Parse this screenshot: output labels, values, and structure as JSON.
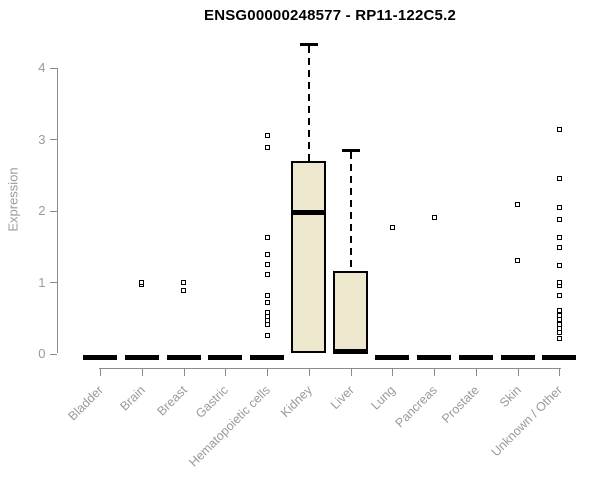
{
  "title": "ENSG00000248577 - RP11-122C5.2",
  "chart_data": {
    "type": "boxplot",
    "title": "ENSG00000248577 - RP11-122C5.2",
    "xlabel": "",
    "ylabel": "Expression",
    "ylim": [
      0,
      4
    ],
    "yticks": [
      0,
      1,
      2,
      3,
      4
    ],
    "grid": false,
    "legend": false,
    "categories": [
      "Bladder",
      "Brain",
      "Breast",
      "Gastric",
      "Hematopoietic cells",
      "Kidney",
      "Liver",
      "Lung",
      "Pancreas",
      "Prostate",
      "Skin",
      "Unknown / Other"
    ],
    "boxes": [
      {
        "category": "Bladder",
        "q1": 0,
        "median": 0,
        "q3": 0,
        "whisker_low": 0,
        "whisker_high": 0,
        "outliers": []
      },
      {
        "category": "Brain",
        "q1": 0,
        "median": 0,
        "q3": 0,
        "whisker_low": 0,
        "whisker_high": 0,
        "outliers": [
          0.96,
          1.0
        ]
      },
      {
        "category": "Breast",
        "q1": 0,
        "median": 0,
        "q3": 0,
        "whisker_low": 0,
        "whisker_high": 0,
        "outliers": [
          0.88,
          0.99
        ]
      },
      {
        "category": "Gastric",
        "q1": 0,
        "median": 0,
        "q3": 0,
        "whisker_low": 0,
        "whisker_high": 0,
        "outliers": []
      },
      {
        "category": "Hematopoietic cells",
        "q1": 0,
        "median": 0,
        "q3": 0,
        "whisker_low": 0,
        "whisker_high": 0,
        "outliers": [
          0.25,
          0.4,
          0.46,
          0.52,
          0.58,
          0.72,
          0.81,
          1.11,
          1.24,
          1.39,
          1.63,
          2.88,
          3.05
        ]
      },
      {
        "category": "Kidney",
        "q1": 0,
        "median": 1.97,
        "q3": 2.7,
        "whisker_low": 0,
        "whisker_high": 4.35,
        "outliers": []
      },
      {
        "category": "Liver",
        "q1": 0,
        "median": 0.03,
        "q3": 1.16,
        "whisker_low": 0,
        "whisker_high": 2.87,
        "outliers": []
      },
      {
        "category": "Lung",
        "q1": 0,
        "median": 0,
        "q3": 0,
        "whisker_low": 0,
        "whisker_high": 0,
        "outliers": [
          1.76
        ]
      },
      {
        "category": "Pancreas",
        "q1": 0,
        "median": 0,
        "q3": 0,
        "whisker_low": 0,
        "whisker_high": 0,
        "outliers": [
          1.91
        ]
      },
      {
        "category": "Prostate",
        "q1": 0,
        "median": 0,
        "q3": 0,
        "whisker_low": 0,
        "whisker_high": 0,
        "outliers": []
      },
      {
        "category": "Skin",
        "q1": 0,
        "median": 0,
        "q3": 0,
        "whisker_low": 0,
        "whisker_high": 0,
        "outliers": [
          1.3,
          2.08
        ]
      },
      {
        "category": "Unknown / Other",
        "q1": 0,
        "median": 0,
        "q3": 0,
        "whisker_low": 0,
        "whisker_high": 0,
        "outliers": [
          0.21,
          0.3,
          0.35,
          0.41,
          0.47,
          0.53,
          0.6,
          0.81,
          0.95,
          1.0,
          1.23,
          1.48,
          1.62,
          1.88,
          2.04,
          2.45,
          3.14
        ]
      }
    ]
  },
  "colors": {
    "box_fill": "#ede7cd",
    "box_border": "#000000",
    "axis": "#8c8c8c",
    "text_labels": "#9a9a9a",
    "title": "#000000"
  }
}
